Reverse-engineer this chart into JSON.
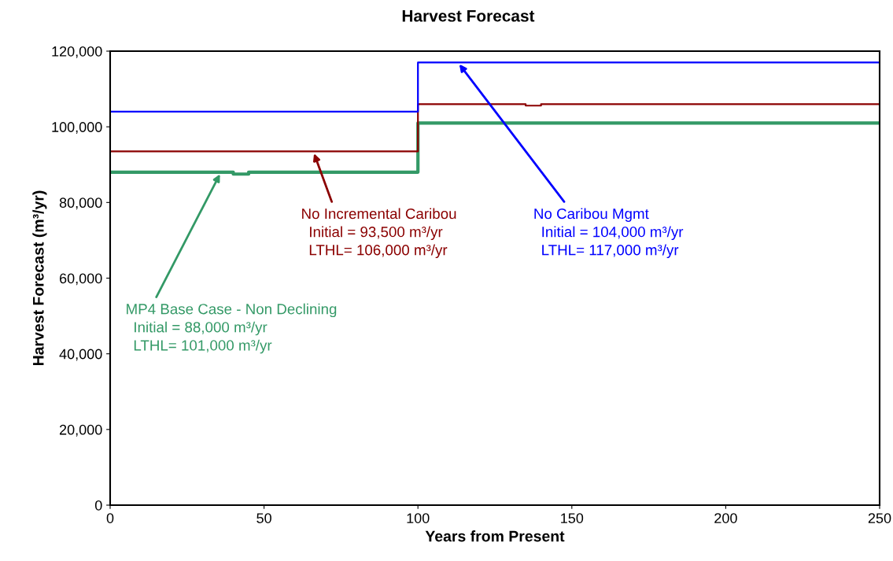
{
  "chart_data": {
    "type": "step",
    "title": "Harvest Forecast",
    "xlabel": "Years from Present",
    "ylabel": "Harvest Forecast (m³/yr)",
    "series": [
      {
        "name": "MP4 Base Case - Non Declining",
        "color": "#339966",
        "x": [
          0,
          40,
          45,
          100,
          250
        ],
        "values": [
          88000,
          87500,
          88000,
          101000,
          101000
        ]
      },
      {
        "name": "No Incremental Caribou",
        "color": "#8b0000",
        "x": [
          0,
          100,
          135,
          140,
          250
        ],
        "values": [
          93500,
          106000,
          105600,
          106000,
          106000
        ]
      },
      {
        "name": "No Caribou Mgmt",
        "color": "#0000ff",
        "x": [
          0,
          100,
          250
        ],
        "values": [
          104000,
          117000,
          117000
        ]
      }
    ],
    "annotations": [
      "Initial = 88,000 m³/yr",
      "LTHL= 101,000 m³/yr",
      "Initial = 93,500 m³/yr",
      "LTHL= 106,000 m³/yr",
      "Initial = 104,000 m³/yr",
      "LTHL= 117,000 m³/yr"
    ],
    "xlim": [
      0,
      250
    ],
    "xticks": [
      0,
      50,
      100,
      150,
      200,
      250
    ],
    "ylim": [
      0,
      120000
    ],
    "yticks": [
      0,
      {
        "value": 20000,
        "label": "20,000"
      },
      {
        "value": 40000,
        "label": "40,000"
      },
      {
        "value": 60000,
        "label": "60,000"
      },
      {
        "value": 80000,
        "label": "80,000"
      },
      {
        "value": 100000,
        "label": "100,000"
      },
      {
        "value": 120000,
        "label": "120,000"
      }
    ],
    "grid": false,
    "legend": false,
    "marker": "none",
    "line_style": "solid"
  }
}
